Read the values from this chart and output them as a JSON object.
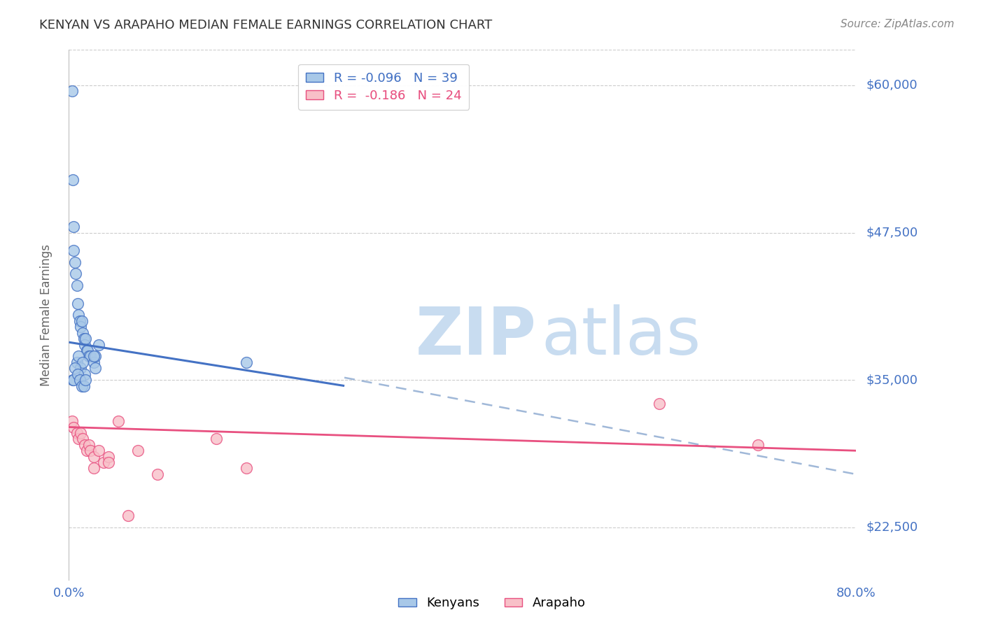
{
  "title": "KENYAN VS ARAPAHO MEDIAN FEMALE EARNINGS CORRELATION CHART",
  "source": "Source: ZipAtlas.com",
  "ylabel": "Median Female Earnings",
  "yticks": [
    22500,
    35000,
    47500,
    60000
  ],
  "ytick_labels": [
    "$22,500",
    "$35,000",
    "$47,500",
    "$60,000"
  ],
  "kenyan_x": [
    0.003,
    0.004,
    0.005,
    0.005,
    0.006,
    0.007,
    0.008,
    0.009,
    0.01,
    0.011,
    0.012,
    0.013,
    0.014,
    0.015,
    0.016,
    0.017,
    0.018,
    0.019,
    0.02,
    0.022,
    0.025,
    0.027,
    0.03,
    0.008,
    0.01,
    0.012,
    0.014,
    0.016,
    0.004,
    0.005,
    0.006,
    0.009,
    0.011,
    0.013,
    0.015,
    0.017,
    0.18,
    0.025,
    0.027
  ],
  "kenyan_y": [
    59500,
    52000,
    48000,
    46000,
    45000,
    44000,
    43000,
    41500,
    40500,
    40000,
    39500,
    40000,
    39000,
    38500,
    38000,
    38500,
    37500,
    37500,
    37000,
    37000,
    36500,
    37000,
    38000,
    36500,
    37000,
    36000,
    36500,
    35500,
    35000,
    35000,
    36000,
    35500,
    35000,
    34500,
    34500,
    35000,
    36500,
    37000,
    36000
  ],
  "arapaho_x": [
    0.003,
    0.005,
    0.008,
    0.01,
    0.012,
    0.014,
    0.016,
    0.018,
    0.02,
    0.022,
    0.025,
    0.03,
    0.035,
    0.04,
    0.05,
    0.06,
    0.07,
    0.09,
    0.15,
    0.18,
    0.025,
    0.04,
    0.6,
    0.7
  ],
  "arapaho_y": [
    31500,
    31000,
    30500,
    30000,
    30500,
    30000,
    29500,
    29000,
    29500,
    29000,
    28500,
    29000,
    28000,
    28500,
    31500,
    23500,
    29000,
    27000,
    30000,
    27500,
    27500,
    28000,
    33000,
    29500
  ],
  "kenyan_color": "#A8C8E8",
  "kenyan_edge_color": "#4472C4",
  "arapaho_color": "#F8C0C8",
  "arapaho_edge_color": "#E85080",
  "kenyan_trend_x": [
    0.0,
    0.28
  ],
  "kenyan_trend_y": [
    38200,
    34500
  ],
  "arapaho_trend_x": [
    0.0,
    0.8
  ],
  "arapaho_trend_y": [
    31000,
    29000
  ],
  "dashed_trend_x": [
    0.28,
    0.8
  ],
  "dashed_trend_y": [
    35200,
    27000
  ],
  "xlim": [
    0.0,
    0.8
  ],
  "ylim": [
    18000,
    63000
  ],
  "bg_color": "#FFFFFF",
  "grid_color": "#CCCCCC",
  "title_color": "#333333",
  "ylabel_color": "#666666",
  "yaxis_label_color": "#4472C4",
  "source_color": "#888888",
  "legend_entry_kenyan": "R = -0.096   N = 39",
  "legend_entry_arapaho": "R =  -0.186   N = 24",
  "legend_label_kenyan": "Kenyans",
  "legend_label_arapaho": "Arapaho"
}
